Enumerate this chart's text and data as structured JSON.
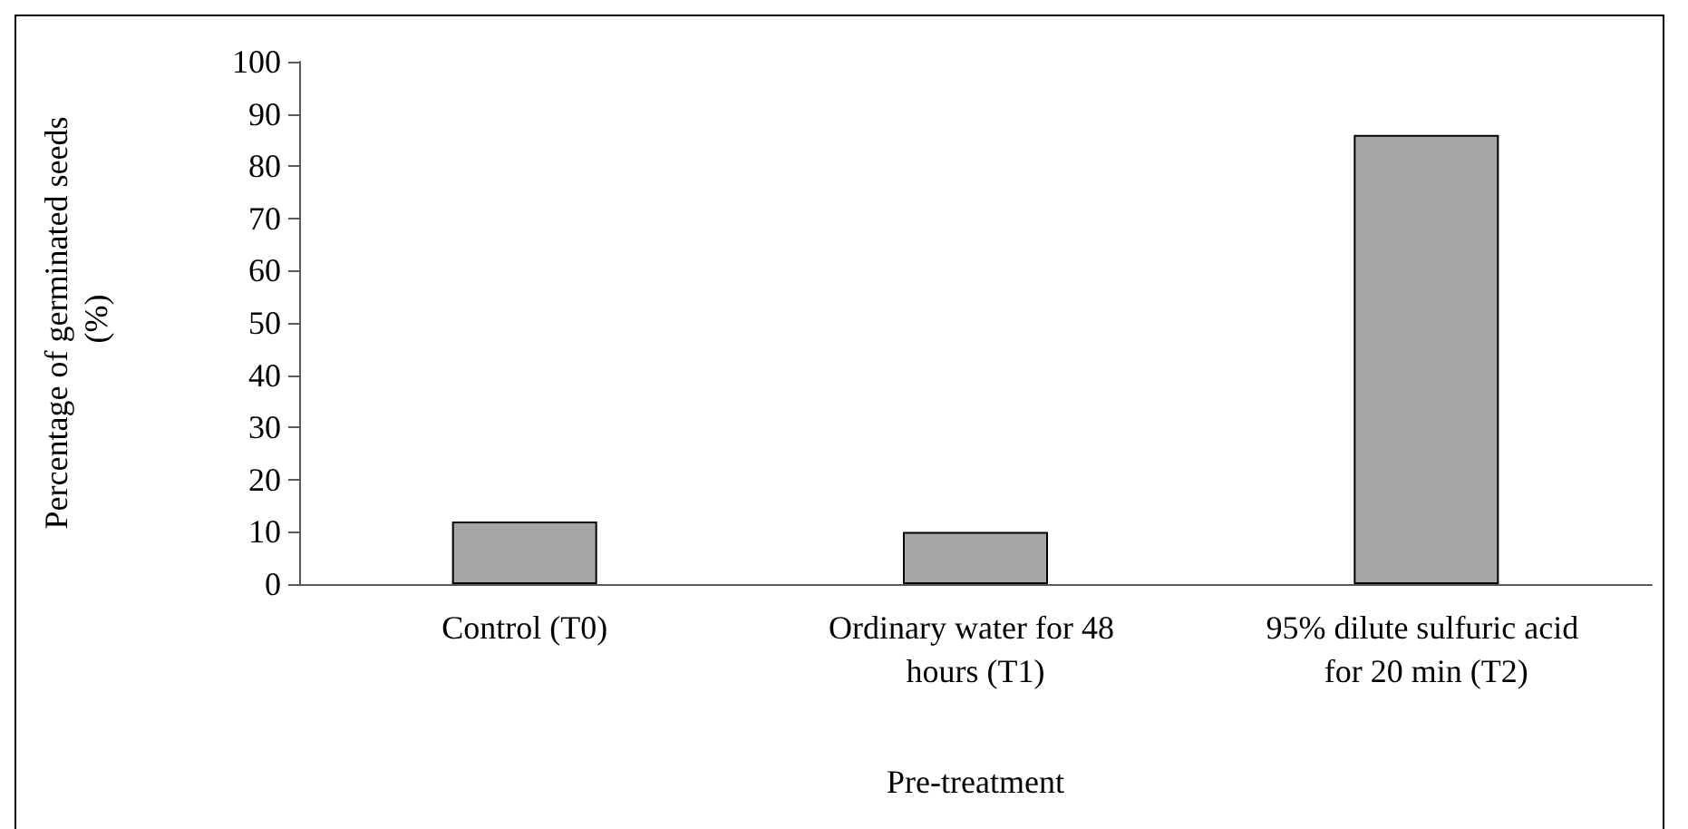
{
  "chart_data": {
    "type": "bar",
    "xlabel": "Pre-treatment",
    "ylabel": "Percentage of germinated seeds (%)",
    "categories": [
      "Control (T0)",
      "Ordinary water for 48 hours (T1)",
      "95% dilute sulfuric acid for 20 min (T2)"
    ],
    "values": [
      12,
      10,
      86
    ],
    "color": "#a6a6a6",
    "ylim": [
      0,
      100
    ],
    "yticks": [
      0,
      10,
      20,
      30,
      40,
      50,
      60,
      70,
      80,
      90,
      100
    ],
    "grid": false
  }
}
